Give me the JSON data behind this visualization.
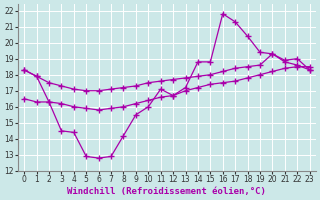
{
  "title": "",
  "xlabel": "Windchill (Refroidissement éolien,°C)",
  "ylabel": "",
  "bg_color": "#cce8e8",
  "line_color": "#aa00aa",
  "grid_color": "#ffffff",
  "xlim": [
    -0.5,
    23.5
  ],
  "ylim": [
    12,
    22.4
  ],
  "xticks": [
    0,
    1,
    2,
    3,
    4,
    5,
    6,
    7,
    8,
    9,
    10,
    11,
    12,
    13,
    14,
    15,
    16,
    17,
    18,
    19,
    20,
    21,
    22,
    23
  ],
  "yticks": [
    12,
    13,
    14,
    15,
    16,
    17,
    18,
    19,
    20,
    21,
    22
  ],
  "line1_x": [
    0,
    1,
    2,
    3,
    4,
    5,
    6,
    7,
    8,
    9,
    10,
    11,
    12,
    13,
    14,
    15,
    16,
    17,
    18,
    19,
    20,
    21,
    22,
    23
  ],
  "line1_y": [
    18.3,
    17.9,
    17.5,
    17.3,
    17.1,
    17.0,
    17.0,
    17.1,
    17.2,
    17.3,
    17.5,
    17.6,
    17.7,
    17.8,
    17.9,
    18.0,
    18.2,
    18.4,
    18.5,
    18.6,
    19.3,
    18.8,
    18.6,
    18.3
  ],
  "line2_x": [
    0,
    1,
    2,
    3,
    4,
    5,
    6,
    7,
    8,
    9,
    10,
    11,
    12,
    13,
    14,
    15,
    16,
    17,
    18,
    19,
    20,
    21,
    22,
    23
  ],
  "line2_y": [
    18.3,
    17.9,
    16.3,
    14.5,
    14.4,
    12.9,
    12.8,
    12.9,
    14.2,
    15.5,
    16.0,
    17.1,
    16.7,
    17.2,
    18.8,
    18.8,
    21.8,
    21.3,
    20.4,
    19.4,
    19.3,
    18.9,
    19.0,
    18.3
  ],
  "line3_x": [
    0,
    1,
    2,
    3,
    4,
    5,
    6,
    7,
    8,
    9,
    10,
    11,
    12,
    13,
    14,
    15,
    16,
    17,
    18,
    19,
    20,
    21,
    22,
    23
  ],
  "line3_y": [
    16.5,
    16.3,
    16.3,
    16.2,
    16.0,
    15.9,
    15.8,
    15.9,
    16.0,
    16.2,
    16.4,
    16.6,
    16.7,
    17.0,
    17.2,
    17.4,
    17.5,
    17.6,
    17.8,
    18.0,
    18.2,
    18.4,
    18.5,
    18.5
  ],
  "marker": "+",
  "markersize": 4,
  "linewidth": 0.9,
  "xlabel_fontsize": 6.5,
  "tick_fontsize": 5.5
}
